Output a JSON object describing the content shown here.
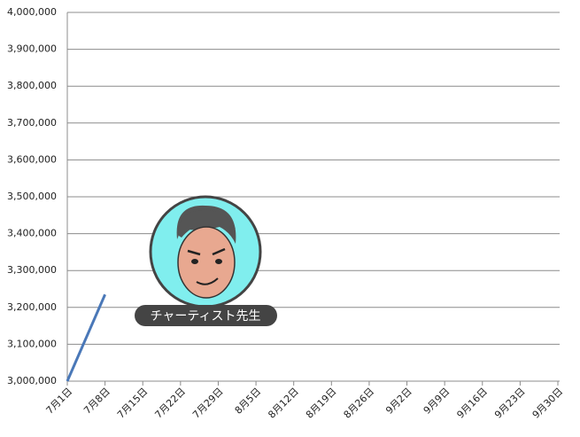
{
  "chart_data": {
    "type": "line",
    "x": [
      "7月1日",
      "7月8日",
      "7月15日",
      "7月22日",
      "7月29日",
      "8月5日",
      "8月12日",
      "8月19日",
      "8月26日",
      "9月2日",
      "9月9日",
      "9月16日",
      "9月23日",
      "9月30日"
    ],
    "series": [
      {
        "color": "#4a78b8",
        "values": [
          3000000,
          3235000,
          null,
          null,
          null,
          null,
          null,
          null,
          null,
          null,
          null,
          null,
          null,
          null
        ]
      }
    ],
    "ylim": [
      3000000,
      4000000
    ],
    "yticks": [
      {
        "value": 3000000,
        "label": "3,000,000"
      },
      {
        "value": 3100000,
        "label": "3,100,000"
      },
      {
        "value": 3200000,
        "label": "3,200,000"
      },
      {
        "value": 3300000,
        "label": "3,300,000"
      },
      {
        "value": 3400000,
        "label": "3,400,000"
      },
      {
        "value": 3500000,
        "label": "3,500,000"
      },
      {
        "value": 3600000,
        "label": "3,600,000"
      },
      {
        "value": 3700000,
        "label": "3,700,000"
      },
      {
        "value": 3800000,
        "label": "3,800,000"
      },
      {
        "value": 3900000,
        "label": "3,900,000"
      },
      {
        "value": 4000000,
        "label": "4,000,000"
      }
    ],
    "grid": true
  },
  "badge": {
    "label": "チャーティスト先生"
  }
}
